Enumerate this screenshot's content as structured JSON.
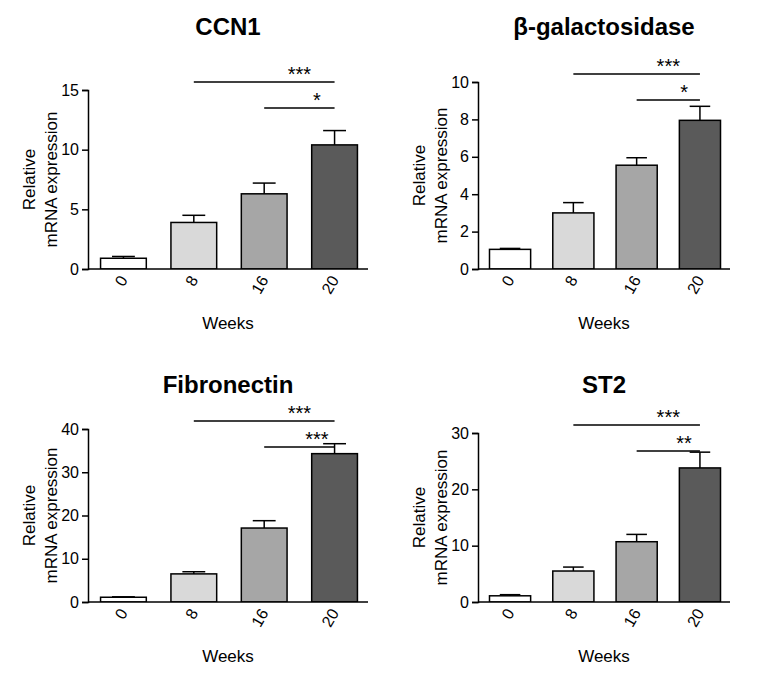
{
  "chart_data": [
    {
      "type": "bar",
      "title": "CCN1",
      "x_label": "Weeks",
      "y_label": [
        "Relative",
        "mRNA expression"
      ],
      "categories": [
        "0",
        "8",
        "16",
        "20"
      ],
      "values": [
        0.9,
        3.9,
        6.3,
        10.4
      ],
      "errors": [
        0.15,
        0.6,
        0.9,
        1.2
      ],
      "colors": [
        "#ffffff",
        "#d9d9d9",
        "#a6a6a6",
        "#5a5a5a"
      ],
      "ylim": [
        0,
        15
      ],
      "yticks": [
        0,
        5,
        10,
        15
      ],
      "annotations": [
        {
          "from": "8",
          "to": "20",
          "label": "***"
        },
        {
          "from": "16",
          "to": "20",
          "label": "*"
        }
      ]
    },
    {
      "type": "bar",
      "title": "β-galactosidase",
      "x_label": "Weeks",
      "y_label": [
        "Relative",
        "mRNA expression"
      ],
      "categories": [
        "0",
        "8",
        "16",
        "20"
      ],
      "values": [
        1.05,
        3.0,
        5.55,
        7.95
      ],
      "errors": [
        0.05,
        0.55,
        0.4,
        0.75
      ],
      "colors": [
        "#ffffff",
        "#d9d9d9",
        "#a6a6a6",
        "#5a5a5a"
      ],
      "ylim": [
        0,
        10
      ],
      "yticks": [
        0,
        2,
        4,
        6,
        8,
        10
      ],
      "annotations": [
        {
          "from": "8",
          "to": "20",
          "label": "***"
        },
        {
          "from": "16",
          "to": "20",
          "label": "*"
        }
      ]
    },
    {
      "type": "bar",
      "title": "Fibronectin",
      "x_label": "Weeks",
      "y_label": [
        "Relative",
        "mRNA expression"
      ],
      "categories": [
        "0",
        "8",
        "16",
        "20"
      ],
      "values": [
        1.1,
        6.5,
        17.1,
        34.3
      ],
      "errors": [
        0.1,
        0.5,
        1.7,
        2.3
      ],
      "colors": [
        "#ffffff",
        "#d9d9d9",
        "#a6a6a6",
        "#5a5a5a"
      ],
      "ylim": [
        0,
        40
      ],
      "yticks": [
        0,
        10,
        20,
        30,
        40
      ],
      "annotations": [
        {
          "from": "8",
          "to": "20",
          "label": "***"
        },
        {
          "from": "16",
          "to": "20",
          "label": "***"
        }
      ]
    },
    {
      "type": "bar",
      "title": "ST2",
      "x_label": "Weeks",
      "y_label": [
        "Relative",
        "mRNA expression"
      ],
      "categories": [
        "0",
        "8",
        "16",
        "20"
      ],
      "values": [
        1.1,
        5.5,
        10.7,
        23.8
      ],
      "errors": [
        0.2,
        0.7,
        1.3,
        2.8
      ],
      "colors": [
        "#ffffff",
        "#d9d9d9",
        "#a6a6a6",
        "#5a5a5a"
      ],
      "ylim": [
        0,
        30
      ],
      "yticks": [
        0,
        10,
        20,
        30
      ],
      "annotations": [
        {
          "from": "8",
          "to": "20",
          "label": "***"
        },
        {
          "from": "16",
          "to": "20",
          "label": "**"
        }
      ]
    }
  ]
}
